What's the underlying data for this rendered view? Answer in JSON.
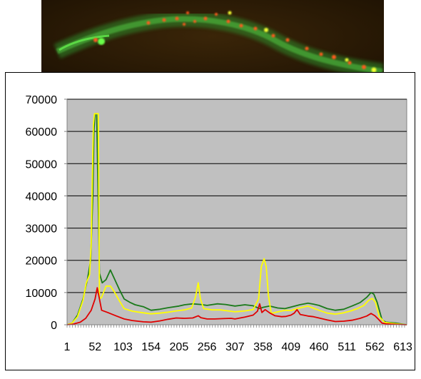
{
  "image": {
    "name": "worm-fluorescence-micrograph",
    "background": "#2a1a05"
  },
  "chart_data": {
    "type": "line",
    "title": "",
    "xlabel": "",
    "ylabel": "",
    "plot_background": "#c0c0c0",
    "grid": true,
    "legend": "none",
    "ylim": [
      0,
      70000
    ],
    "xlim": [
      1,
      620
    ],
    "y_ticks": [
      0,
      10000,
      20000,
      30000,
      40000,
      50000,
      60000,
      70000
    ],
    "y_tick_labels": [
      "0",
      "10000",
      "20000",
      "30000",
      "40000",
      "50000",
      "60000",
      "70000"
    ],
    "x_ticks": [
      1,
      52,
      103,
      154,
      205,
      256,
      307,
      358,
      409,
      460,
      511,
      562,
      613
    ],
    "x_tick_labels": [
      "1",
      "52",
      "103",
      "154",
      "205",
      "256",
      "307",
      "358",
      "409",
      "460",
      "511",
      "562",
      "613"
    ],
    "series": [
      {
        "color": "#1a7a1a",
        "points": [
          [
            1,
            0
          ],
          [
            10,
            500
          ],
          [
            20,
            3000
          ],
          [
            30,
            8000
          ],
          [
            38,
            14000
          ],
          [
            44,
            20000
          ],
          [
            48,
            40000
          ],
          [
            50,
            60000
          ],
          [
            52,
            65500
          ],
          [
            55,
            65500
          ],
          [
            57,
            45000
          ],
          [
            60,
            16000
          ],
          [
            65,
            13000
          ],
          [
            72,
            14000
          ],
          [
            80,
            17000
          ],
          [
            88,
            14000
          ],
          [
            96,
            11000
          ],
          [
            105,
            8000
          ],
          [
            115,
            7000
          ],
          [
            125,
            6200
          ],
          [
            140,
            5600
          ],
          [
            154,
            4500
          ],
          [
            170,
            4800
          ],
          [
            185,
            5300
          ],
          [
            205,
            5800
          ],
          [
            215,
            6200
          ],
          [
            230,
            6500
          ],
          [
            245,
            6300
          ],
          [
            256,
            6000
          ],
          [
            275,
            6500
          ],
          [
            290,
            6300
          ],
          [
            307,
            5800
          ],
          [
            325,
            6200
          ],
          [
            340,
            5900
          ],
          [
            352,
            5000
          ],
          [
            358,
            5400
          ],
          [
            370,
            5800
          ],
          [
            385,
            5200
          ],
          [
            398,
            5000
          ],
          [
            409,
            5500
          ],
          [
            425,
            6200
          ],
          [
            440,
            6700
          ],
          [
            450,
            6400
          ],
          [
            460,
            6000
          ],
          [
            475,
            5000
          ],
          [
            490,
            4500
          ],
          [
            505,
            4800
          ],
          [
            520,
            5800
          ],
          [
            535,
            6900
          ],
          [
            547,
            8500
          ],
          [
            555,
            10000
          ],
          [
            560,
            9500
          ],
          [
            566,
            7000
          ],
          [
            575,
            1500
          ],
          [
            582,
            800
          ],
          [
            600,
            500
          ],
          [
            612,
            200
          ],
          [
            620,
            0
          ]
        ]
      },
      {
        "color": "#ffff00",
        "points": [
          [
            1,
            0
          ],
          [
            10,
            500
          ],
          [
            20,
            2500
          ],
          [
            30,
            7500
          ],
          [
            36,
            13000
          ],
          [
            42,
            15500
          ],
          [
            45,
            25000
          ],
          [
            47,
            45000
          ],
          [
            49,
            62000
          ],
          [
            51,
            65500
          ],
          [
            58,
            65500
          ],
          [
            60,
            8000
          ],
          [
            64,
            8500
          ],
          [
            72,
            12000
          ],
          [
            80,
            12000
          ],
          [
            88,
            10000
          ],
          [
            96,
            7500
          ],
          [
            105,
            5000
          ],
          [
            120,
            4200
          ],
          [
            140,
            3700
          ],
          [
            154,
            3400
          ],
          [
            170,
            3600
          ],
          [
            185,
            3900
          ],
          [
            200,
            4300
          ],
          [
            215,
            4600
          ],
          [
            228,
            5200
          ],
          [
            235,
            8500
          ],
          [
            240,
            13000
          ],
          [
            244,
            8000
          ],
          [
            250,
            5000
          ],
          [
            265,
            4600
          ],
          [
            280,
            4600
          ],
          [
            295,
            4300
          ],
          [
            307,
            4000
          ],
          [
            325,
            4300
          ],
          [
            340,
            4700
          ],
          [
            350,
            8000
          ],
          [
            355,
            18000
          ],
          [
            360,
            20500
          ],
          [
            364,
            18000
          ],
          [
            368,
            9000
          ],
          [
            373,
            3500
          ],
          [
            385,
            4000
          ],
          [
            398,
            4500
          ],
          [
            409,
            4400
          ],
          [
            420,
            5000
          ],
          [
            432,
            5500
          ],
          [
            440,
            5800
          ],
          [
            452,
            5000
          ],
          [
            460,
            4500
          ],
          [
            475,
            3600
          ],
          [
            490,
            3300
          ],
          [
            505,
            3700
          ],
          [
            518,
            4300
          ],
          [
            530,
            5000
          ],
          [
            542,
            6000
          ],
          [
            550,
            7500
          ],
          [
            557,
            8200
          ],
          [
            563,
            7000
          ],
          [
            570,
            2500
          ],
          [
            580,
            700
          ],
          [
            600,
            300
          ],
          [
            620,
            0
          ]
        ]
      },
      {
        "color": "#e00000",
        "points": [
          [
            1,
            0
          ],
          [
            12,
            200
          ],
          [
            25,
            800
          ],
          [
            35,
            2000
          ],
          [
            45,
            4500
          ],
          [
            52,
            8000
          ],
          [
            56,
            11500
          ],
          [
            60,
            8000
          ],
          [
            64,
            4500
          ],
          [
            75,
            3800
          ],
          [
            90,
            2800
          ],
          [
            105,
            1800
          ],
          [
            120,
            1300
          ],
          [
            140,
            900
          ],
          [
            154,
            800
          ],
          [
            170,
            1200
          ],
          [
            185,
            1700
          ],
          [
            200,
            2100
          ],
          [
            215,
            2000
          ],
          [
            230,
            2100
          ],
          [
            240,
            2800
          ],
          [
            245,
            2200
          ],
          [
            256,
            1800
          ],
          [
            270,
            1800
          ],
          [
            285,
            1900
          ],
          [
            300,
            2000
          ],
          [
            307,
            1800
          ],
          [
            325,
            2400
          ],
          [
            340,
            3000
          ],
          [
            348,
            4200
          ],
          [
            352,
            6500
          ],
          [
            356,
            3800
          ],
          [
            362,
            4700
          ],
          [
            370,
            3700
          ],
          [
            380,
            2800
          ],
          [
            392,
            2500
          ],
          [
            400,
            2600
          ],
          [
            409,
            3000
          ],
          [
            415,
            3600
          ],
          [
            420,
            4700
          ],
          [
            426,
            3200
          ],
          [
            432,
            3000
          ],
          [
            440,
            2700
          ],
          [
            450,
            2500
          ],
          [
            460,
            2100
          ],
          [
            475,
            1500
          ],
          [
            490,
            1000
          ],
          [
            505,
            1100
          ],
          [
            520,
            1400
          ],
          [
            535,
            2000
          ],
          [
            547,
            2700
          ],
          [
            555,
            3500
          ],
          [
            562,
            2800
          ],
          [
            568,
            1800
          ],
          [
            575,
            500
          ],
          [
            582,
            300
          ],
          [
            600,
            100
          ],
          [
            620,
            0
          ]
        ]
      }
    ]
  }
}
